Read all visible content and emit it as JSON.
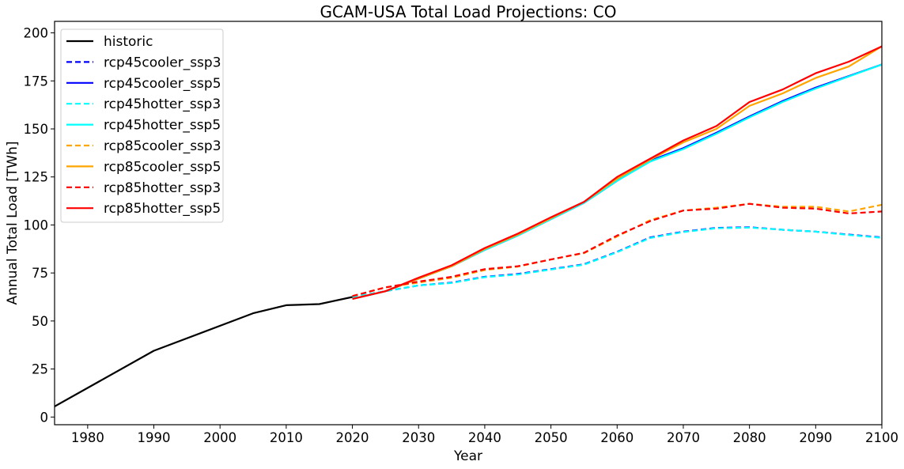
{
  "chart_data": {
    "type": "line",
    "title": "GCAM-USA Total Load Projections: CO",
    "xlabel": "Year",
    "ylabel": "Annual Total Load [TWh]",
    "xlim": [
      1975,
      2100
    ],
    "ylim": [
      -4,
      206
    ],
    "x_ticks": [
      1980,
      1990,
      2000,
      2010,
      2020,
      2030,
      2040,
      2050,
      2060,
      2070,
      2080,
      2090,
      2100
    ],
    "y_ticks": [
      0,
      25,
      50,
      75,
      100,
      125,
      150,
      175,
      200
    ],
    "grid": false,
    "legend_position": "top-left",
    "series": [
      {
        "name": "historic",
        "color": "#000000",
        "dash": "solid",
        "x": [
          1975,
          1990,
          2005,
          2010,
          2015,
          2020
        ],
        "values": [
          5.5,
          34.5,
          54,
          58.2,
          58.8,
          62.5
        ]
      },
      {
        "name": "rcp45cooler_ssp3",
        "color": "#0000ff",
        "dash": "dashed",
        "x": [
          2020,
          2025,
          2030,
          2035,
          2040,
          2045,
          2050,
          2055,
          2060,
          2065,
          2070,
          2075,
          2080,
          2085,
          2090,
          2095,
          2100
        ],
        "values": [
          62.5,
          65.5,
          68.5,
          70,
          73,
          74.5,
          77,
          79.5,
          86,
          93.5,
          96.5,
          98.5,
          98.8,
          97.5,
          96.5,
          95,
          93.5
        ]
      },
      {
        "name": "rcp45cooler_ssp5",
        "color": "#0000ff",
        "dash": "solid",
        "x": [
          2020,
          2025,
          2030,
          2035,
          2040,
          2045,
          2050,
          2055,
          2060,
          2065,
          2070,
          2075,
          2080,
          2085,
          2090,
          2095,
          2100
        ],
        "values": [
          61.5,
          65.5,
          72,
          78.5,
          87,
          94.5,
          103,
          111.5,
          123,
          133.5,
          140,
          148,
          156.5,
          164.5,
          171.5,
          177.5,
          183.5
        ]
      },
      {
        "name": "rcp45hotter_ssp3",
        "color": "#00ffff",
        "dash": "dashed",
        "x": [
          2020,
          2025,
          2030,
          2035,
          2040,
          2045,
          2050,
          2055,
          2060,
          2065,
          2070,
          2075,
          2080,
          2085,
          2090,
          2095,
          2100
        ],
        "values": [
          62.5,
          65.5,
          68.5,
          69.8,
          72.8,
          74.2,
          76.8,
          79.3,
          85.8,
          93.2,
          96.3,
          98.3,
          98.6,
          97.5,
          96.5,
          94.8,
          93.3
        ]
      },
      {
        "name": "rcp45hotter_ssp5",
        "color": "#00ffff",
        "dash": "solid",
        "x": [
          2020,
          2025,
          2030,
          2035,
          2040,
          2045,
          2050,
          2055,
          2060,
          2065,
          2070,
          2075,
          2080,
          2085,
          2090,
          2095,
          2100
        ],
        "values": [
          61.5,
          65.5,
          72,
          78.5,
          87,
          94.5,
          103,
          111.5,
          123,
          133,
          139.5,
          147.5,
          156,
          164,
          171,
          177.3,
          183.5
        ]
      },
      {
        "name": "rcp85cooler_ssp3",
        "color": "#ffa500",
        "dash": "dashed",
        "x": [
          2020,
          2025,
          2030,
          2035,
          2040,
          2045,
          2050,
          2055,
          2060,
          2065,
          2070,
          2075,
          2080,
          2085,
          2090,
          2095,
          2100
        ],
        "values": [
          63,
          67.5,
          70,
          72.5,
          76.5,
          78.3,
          82,
          85.3,
          94,
          102.5,
          107.5,
          109,
          111,
          109.5,
          109.5,
          107,
          110.5
        ]
      },
      {
        "name": "rcp85cooler_ssp5",
        "color": "#ffa500",
        "dash": "solid",
        "x": [
          2020,
          2025,
          2030,
          2035,
          2040,
          2045,
          2050,
          2055,
          2060,
          2065,
          2070,
          2075,
          2080,
          2085,
          2090,
          2095,
          2100
        ],
        "values": [
          61.5,
          65.5,
          72,
          78.5,
          87.5,
          95,
          103.5,
          112,
          124,
          134,
          143,
          150,
          162,
          168.5,
          176.5,
          182.5,
          193
        ]
      },
      {
        "name": "rcp85hotter_ssp3",
        "color": "#ff0000",
        "dash": "dashed",
        "x": [
          2020,
          2025,
          2030,
          2035,
          2040,
          2045,
          2050,
          2055,
          2060,
          2065,
          2070,
          2075,
          2080,
          2085,
          2090,
          2095,
          2100
        ],
        "values": [
          63,
          67.5,
          70.5,
          73,
          77,
          78.5,
          82,
          85.5,
          94.5,
          102,
          107.5,
          108.5,
          111,
          109,
          108.5,
          106,
          107
        ]
      },
      {
        "name": "rcp85hotter_ssp5",
        "color": "#ff0000",
        "dash": "solid",
        "x": [
          2020,
          2025,
          2030,
          2035,
          2040,
          2045,
          2050,
          2055,
          2060,
          2065,
          2070,
          2075,
          2080,
          2085,
          2090,
          2095,
          2100
        ],
        "values": [
          61.5,
          65.5,
          72.5,
          79,
          88,
          95.5,
          104,
          112,
          125,
          134.5,
          144,
          151.5,
          164,
          170.5,
          179,
          185,
          193
        ]
      }
    ]
  }
}
